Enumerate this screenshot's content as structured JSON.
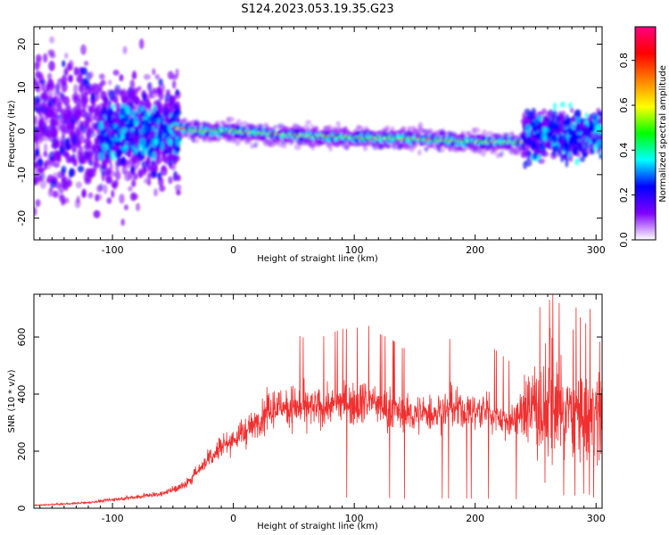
{
  "title": "S124.2023.053.19.35.G23",
  "chart_data": [
    {
      "type": "heatmap",
      "name": "spectrogram",
      "xlabel": "Height of straight line (km)",
      "ylabel": "Frequency (Hz)",
      "xlim": [
        -165,
        305
      ],
      "ylim": [
        -25,
        24
      ],
      "x_ticks": [
        -100,
        0,
        100,
        200,
        300
      ],
      "y_ticks": [
        -20,
        -10,
        0,
        10,
        20
      ],
      "colorbar": {
        "label": "Normalized spectral amplitude",
        "range": [
          0.0,
          0.95
        ],
        "ticks": [
          0.0,
          0.2,
          0.4,
          0.6,
          0.8
        ],
        "colors": [
          "#ffffff",
          "#8000ff",
          "#0000ff",
          "#00ffff",
          "#00ff00",
          "#ffff00",
          "#ff8000",
          "#ff0000",
          "#ff0080"
        ]
      },
      "ridge": {
        "x": [
          -50,
          -30,
          0,
          50,
          100,
          150,
          200,
          230
        ],
        "frequency": [
          1.0,
          0.0,
          0.0,
          -1.0,
          -1.5,
          -1.8,
          -2.5,
          -2.5
        ]
      }
    },
    {
      "type": "line",
      "name": "snr",
      "xlabel": "Height of straight line (km)",
      "ylabel": "SNR (10 * v/v)",
      "xlim": [
        -165,
        305
      ],
      "ylim": [
        0,
        750
      ],
      "x_ticks": [
        -100,
        0,
        100,
        200,
        300
      ],
      "y_ticks": [
        0,
        200,
        400,
        600
      ],
      "series": [
        {
          "name": "SNR",
          "color": "#f03030",
          "x": [
            -165,
            -140,
            -120,
            -100,
            -80,
            -60,
            -40,
            -30,
            -20,
            -10,
            0,
            10,
            20,
            30,
            40,
            50,
            60,
            70,
            80,
            90,
            100,
            110,
            120,
            130,
            140,
            150,
            160,
            170,
            180,
            190,
            200,
            210,
            220,
            230,
            240,
            250,
            260,
            270,
            280,
            290,
            300,
            305
          ],
          "values": [
            10,
            15,
            20,
            30,
            40,
            50,
            80,
            130,
            180,
            220,
            240,
            270,
            300,
            340,
            360,
            360,
            350,
            350,
            360,
            370,
            370,
            380,
            360,
            350,
            330,
            330,
            330,
            340,
            350,
            340,
            340,
            340,
            320,
            300,
            340,
            360,
            350,
            340,
            330,
            320,
            320,
            320
          ]
        }
      ]
    }
  ]
}
